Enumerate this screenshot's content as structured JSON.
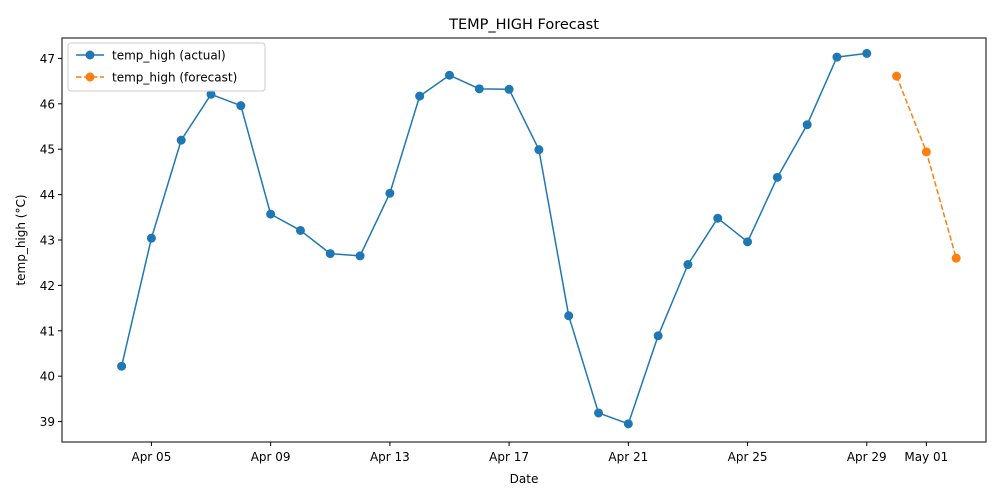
{
  "chart_data": {
    "type": "line",
    "title": "TEMP_HIGH Forecast",
    "xlabel": "Date",
    "ylabel": "temp_high (°C)",
    "x_ticks": [
      {
        "date": "2024-04-05",
        "label": "Apr 05"
      },
      {
        "date": "2024-04-09",
        "label": "Apr 09"
      },
      {
        "date": "2024-04-13",
        "label": "Apr 13"
      },
      {
        "date": "2024-04-17",
        "label": "Apr 17"
      },
      {
        "date": "2024-04-21",
        "label": "Apr 21"
      },
      {
        "date": "2024-04-25",
        "label": "Apr 25"
      },
      {
        "date": "2024-04-29",
        "label": "Apr 29"
      },
      {
        "date": "2024-05-01",
        "label": "May 01"
      }
    ],
    "y_ticks": [
      "39",
      "40",
      "41",
      "42",
      "43",
      "44",
      "45",
      "46",
      "47"
    ],
    "xlim": [
      "2024-04-02",
      "2024-05-03"
    ],
    "ylim": [
      38.55,
      47.45
    ],
    "grid": false,
    "legend_position": "top-left",
    "series": [
      {
        "name": "temp_high (actual)",
        "color": "#1f77b4",
        "line_style": "solid",
        "marker": "circle",
        "x": [
          "2024-04-04",
          "2024-04-05",
          "2024-04-06",
          "2024-04-07",
          "2024-04-08",
          "2024-04-09",
          "2024-04-10",
          "2024-04-11",
          "2024-04-12",
          "2024-04-13",
          "2024-04-14",
          "2024-04-15",
          "2024-04-16",
          "2024-04-17",
          "2024-04-18",
          "2024-04-19",
          "2024-04-20",
          "2024-04-21",
          "2024-04-22",
          "2024-04-23",
          "2024-04-24",
          "2024-04-25",
          "2024-04-26",
          "2024-04-27",
          "2024-04-28",
          "2024-04-29"
        ],
        "values": [
          40.22,
          43.04,
          45.2,
          46.21,
          45.96,
          43.57,
          43.21,
          42.7,
          42.65,
          44.03,
          46.17,
          46.63,
          46.33,
          46.32,
          44.99,
          41.33,
          39.19,
          38.95,
          40.89,
          42.46,
          43.48,
          42.96,
          44.38,
          45.54,
          47.03,
          47.11
        ]
      },
      {
        "name": "temp_high (forecast)",
        "color": "#ff7f0e",
        "line_style": "dashed",
        "marker": "circle",
        "x": [
          "2024-04-30",
          "2024-05-01",
          "2024-05-02"
        ],
        "values": [
          46.61,
          44.94,
          42.6
        ]
      }
    ]
  }
}
